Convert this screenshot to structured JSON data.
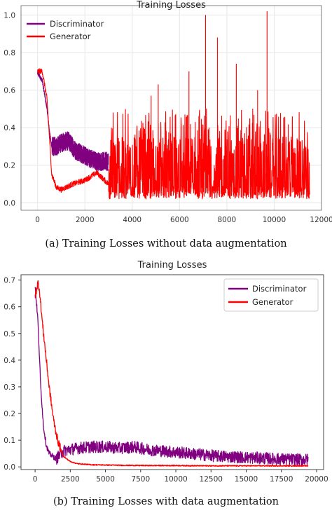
{
  "colors": {
    "discriminator": "#800080",
    "generator": "#ff0000",
    "grid": "#e6e6e6",
    "axis": "#333333"
  },
  "captions": [
    "(a) Training Losses without data augmentation",
    "(b) Training Losses with data augmentation"
  ],
  "chart_data": [
    {
      "type": "line",
      "title": "Training Losses",
      "xlim": [
        -700,
        12000
      ],
      "ylim": [
        -0.04,
        1.05
      ],
      "xticks": [
        0,
        2000,
        4000,
        6000,
        8000,
        10000,
        12000
      ],
      "xtick_labels": [
        "0",
        "2000",
        "4000",
        "6000",
        "8000",
        "10000",
        "12000"
      ],
      "yticks": [
        0.0,
        0.2,
        0.4,
        0.6,
        0.8,
        1.0
      ],
      "ytick_labels": [
        "0.0",
        "0.2",
        "0.4",
        "0.6",
        "0.8",
        "1.0"
      ],
      "grid": true,
      "legend_position": "top-left",
      "series": [
        {
          "name": "Discriminator",
          "color": "#800080",
          "x": [
            0,
            200,
            400,
            500,
            600,
            800,
            1000,
            1300,
            1600,
            2000,
            2500,
            3000
          ],
          "y": [
            0.69,
            0.65,
            0.5,
            0.38,
            0.3,
            0.3,
            0.32,
            0.33,
            0.28,
            0.25,
            0.22,
            0.22
          ]
        },
        {
          "name": "Generator",
          "color": "#ff0000",
          "x": [
            0,
            200,
            400,
            500,
            600,
            800,
            1000,
            1500,
            2000,
            2500,
            3000,
            4000,
            6000,
            8000,
            10000,
            11500
          ],
          "y": [
            0.7,
            0.7,
            0.55,
            0.35,
            0.15,
            0.08,
            0.07,
            0.1,
            0.12,
            0.16,
            0.1,
            0.15,
            0.18,
            0.18,
            0.16,
            0.15
          ],
          "spikes": [
            {
              "x": 7100,
              "y": 1.0
            },
            {
              "x": 9700,
              "y": 1.02
            },
            {
              "x": 7600,
              "y": 0.88
            },
            {
              "x": 8400,
              "y": 0.74
            },
            {
              "x": 6400,
              "y": 0.7
            },
            {
              "x": 5100,
              "y": 0.63
            },
            {
              "x": 9300,
              "y": 0.6
            },
            {
              "x": 4800,
              "y": 0.57
            }
          ]
        }
      ]
    },
    {
      "type": "line",
      "title": "Training Losses",
      "xlim": [
        -1000,
        20500
      ],
      "ylim": [
        -0.01,
        0.72
      ],
      "xticks": [
        0,
        2500,
        5000,
        7500,
        10000,
        12500,
        15000,
        17500,
        20000
      ],
      "xtick_labels": [
        "0",
        "2500",
        "5000",
        "7500",
        "10000",
        "12500",
        "15000",
        "17500",
        "20000"
      ],
      "yticks": [
        0.0,
        0.1,
        0.2,
        0.3,
        0.4,
        0.5,
        0.6,
        0.7
      ],
      "ytick_labels": [
        "0.0",
        "0.1",
        "0.2",
        "0.3",
        "0.4",
        "0.5",
        "0.6",
        "0.7"
      ],
      "grid": false,
      "legend_position": "top-right",
      "series": [
        {
          "name": "Discriminator",
          "color": "#800080",
          "x": [
            0,
            200,
            400,
            600,
            800,
            1000,
            1500,
            2000,
            3000,
            4000,
            5000,
            6000,
            7000,
            8000,
            9000,
            10000,
            11000,
            12000,
            13000,
            14000,
            15000,
            16000,
            17000,
            18000,
            19000,
            19400
          ],
          "y": [
            0.68,
            0.55,
            0.3,
            0.15,
            0.08,
            0.05,
            0.03,
            0.06,
            0.07,
            0.075,
            0.075,
            0.07,
            0.075,
            0.065,
            0.06,
            0.055,
            0.05,
            0.045,
            0.04,
            0.038,
            0.035,
            0.033,
            0.03,
            0.028,
            0.027,
            0.027
          ]
        },
        {
          "name": "Generator",
          "color": "#ff0000",
          "x": [
            0,
            200,
            300,
            500,
            800,
            1000,
            1300,
            1600,
            2000,
            2500,
            3000,
            4000,
            6000,
            8000,
            10000,
            12000,
            15000,
            19400
          ],
          "y": [
            0.64,
            0.69,
            0.67,
            0.55,
            0.4,
            0.3,
            0.18,
            0.1,
            0.04,
            0.02,
            0.012,
            0.008,
            0.006,
            0.005,
            0.005,
            0.004,
            0.004,
            0.004
          ]
        }
      ]
    }
  ]
}
